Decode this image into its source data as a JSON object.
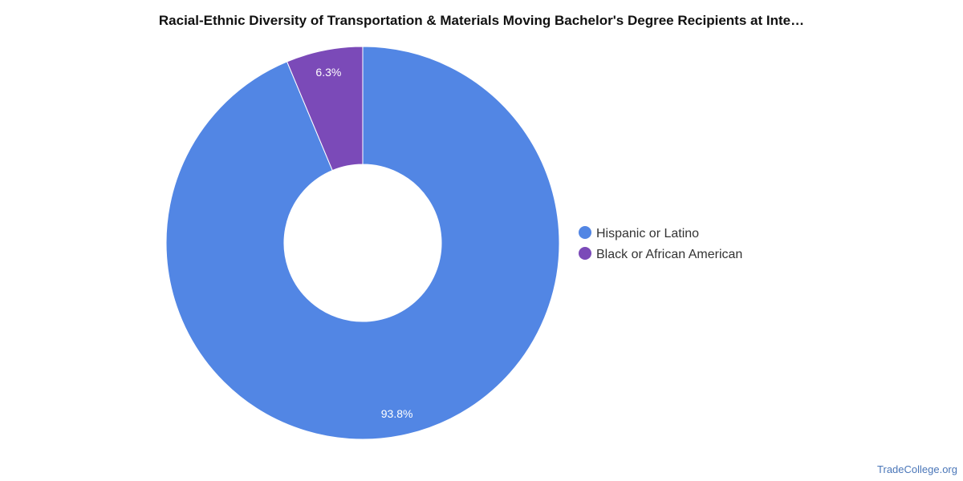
{
  "chart_data": {
    "type": "pie",
    "title": "Racial-Ethnic Diversity of Transportation & Materials Moving Bachelor's Degree Recipients at Inte…",
    "donut": true,
    "categories": [
      "Hispanic or Latino",
      "Black or African American"
    ],
    "values": [
      93.8,
      6.3
    ],
    "value_labels": [
      "93.8%",
      "6.3%"
    ],
    "colors": [
      "#5286e4",
      "#7b4ab8"
    ],
    "legend_position": "right"
  },
  "watermark": "TradeCollege.org"
}
